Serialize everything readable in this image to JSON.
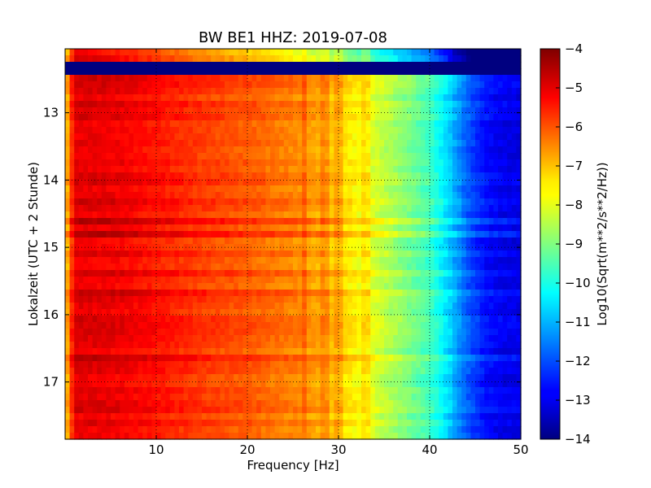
{
  "chart_data": {
    "type": "heatmap",
    "title": "BW BE1 HHZ: 2019-07-08",
    "xlabel": "Frequency [Hz]",
    "ylabel": "Lokalzeit (UTC + 2 Stunde)",
    "xlim": [
      0,
      50
    ],
    "ylim": [
      17.85,
      12.05
    ],
    "x_ticks": [
      10,
      20,
      30,
      40,
      50
    ],
    "y_ticks": [
      13,
      14,
      15,
      16,
      17
    ],
    "grid": true,
    "grid_style": "dotted",
    "colormap": "jet",
    "colorbar": {
      "label": "Log10(Sqrt(m**2/s**2/Hz))",
      "range": [
        -14,
        -4
      ],
      "ticks": [
        -4,
        -5,
        -6,
        -7,
        -8,
        -9,
        -10,
        -11,
        -12,
        -13,
        -14
      ]
    },
    "spectrum_profile": {
      "frequency_hz": [
        0,
        1,
        3,
        6,
        10,
        15,
        20,
        25,
        28,
        30,
        33,
        36,
        40,
        42,
        44,
        46,
        48,
        50
      ],
      "log10_amplitude": [
        -7.5,
        -5.0,
        -5.0,
        -5.1,
        -5.4,
        -5.8,
        -6.1,
        -6.5,
        -6.9,
        -7.3,
        -7.9,
        -8.6,
        -9.6,
        -10.6,
        -11.8,
        -12.6,
        -12.9,
        -13.0
      ]
    },
    "data_gap": {
      "time_start": 12.23,
      "time_end": 12.47,
      "log10_amplitude": -14
    },
    "spectral_lines_hz": [
      26.2,
      28.5,
      30.0,
      33.0
    ],
    "loud_rows_time": [
      14.6,
      14.77,
      15.65,
      16.65
    ]
  }
}
